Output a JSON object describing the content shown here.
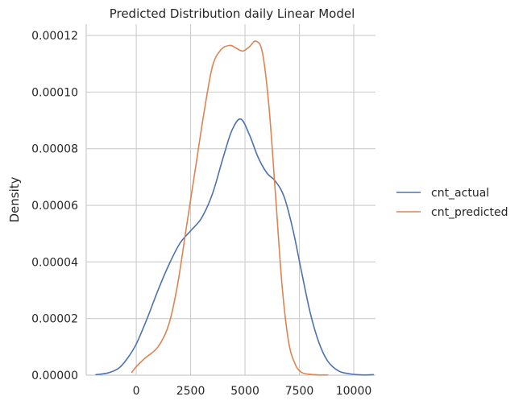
{
  "chart_data": {
    "type": "line",
    "title": "Predicted Distribution daily Linear Model",
    "xlabel": "",
    "ylabel": "Density",
    "xlim": [
      -2300,
      11000
    ],
    "ylim": [
      0,
      0.000124
    ],
    "xticks": [
      0,
      2500,
      5000,
      7500,
      10000
    ],
    "xtick_labels": [
      "0",
      "2500",
      "5000",
      "7500",
      "10000"
    ],
    "yticks": [
      0,
      2e-05,
      4e-05,
      6e-05,
      8e-05,
      0.0001,
      0.00012
    ],
    "ytick_labels": [
      "0.00000",
      "0.00002",
      "0.00004",
      "0.00006",
      "0.00008",
      "0.00010",
      "0.00012"
    ],
    "grid": true,
    "legend_position": "right",
    "series": [
      {
        "name": "cnt_actual",
        "color": "#4c72b0",
        "x": [
          -1850,
          -1300,
          -800,
          -400,
          0,
          500,
          1000,
          1500,
          2000,
          2500,
          3000,
          3500,
          4000,
          4400,
          4800,
          5200,
          5600,
          6000,
          6400,
          6800,
          7200,
          7600,
          8000,
          8400,
          8800,
          9300,
          9800,
          10400,
          10900
        ],
        "y": [
          2e-07,
          8e-07,
          2.5e-06,
          6e-06,
          1.1e-05,
          2e-05,
          3e-05,
          3.9e-05,
          4.65e-05,
          5.1e-05,
          5.55e-05,
          6.4e-05,
          7.7e-05,
          8.65e-05,
          9.05e-05,
          8.5e-05,
          7.7e-05,
          7.15e-05,
          6.85e-05,
          6.3e-05,
          5.15e-05,
          3.65e-05,
          2.2e-05,
          1.15e-05,
          5e-06,
          1.5e-06,
          5e-07,
          1e-07,
          2e-07
        ]
      },
      {
        "name": "cnt_predicted",
        "color": "#dd8452",
        "x": [
          -200,
          0,
          400,
          1000,
          1500,
          1900,
          2300,
          2700,
          3100,
          3500,
          3900,
          4300,
          4600,
          4900,
          5200,
          5500,
          5800,
          6100,
          6400,
          6700,
          7000,
          7300,
          7600,
          8000,
          8400,
          8800
        ],
        "y": [
          1e-06,
          3e-06,
          6e-06,
          1e-05,
          1.8e-05,
          3.2e-05,
          5.2e-05,
          7.2e-05,
          9.2e-05,
          0.000109,
          0.000115,
          0.0001165,
          0.0001155,
          0.0001145,
          0.000116,
          0.000118,
          0.000114,
          9.5e-05,
          6.4e-05,
          3.2e-05,
          1.2e-05,
          4e-06,
          1e-06,
          3e-07,
          1e-07,
          1e-07
        ]
      }
    ]
  }
}
